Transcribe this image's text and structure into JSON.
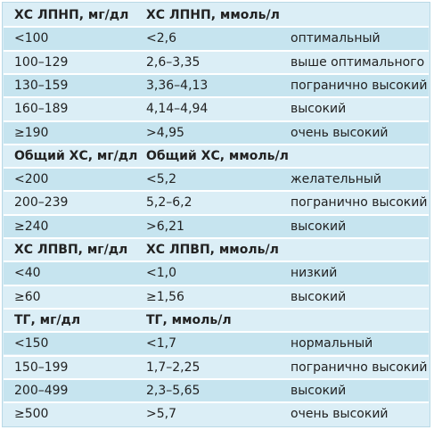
{
  "sections": [
    {
      "header": [
        "ХС ЛПНП, мг/дл",
        "ХС ЛПНП, ммоль/л"
      ],
      "rows": [
        [
          "<100",
          "<2,6",
          "оптимальный"
        ],
        [
          "100–129",
          "2,6–3,35",
          "выше оптимального"
        ],
        [
          "130–159",
          "3,36–4,13",
          "погранично высокий"
        ],
        [
          "160–189",
          "4,14–4,94",
          "высокий"
        ],
        [
          "≥190",
          ">4,95",
          "очень высокий"
        ]
      ]
    },
    {
      "header": [
        "Общий ХС, мг/дл",
        "Общий ХС,  ммоль/л"
      ],
      "rows": [
        [
          "<200",
          "<5,2",
          "желательный"
        ],
        [
          "200–239",
          "5,2–6,2",
          "погранично высокий"
        ],
        [
          "≥240",
          ">6,21",
          "высокий"
        ]
      ]
    },
    {
      "header": [
        "ХС ЛПВП, мг/дл",
        "ХС ЛПВП, ммоль/л"
      ],
      "rows": [
        [
          "<40",
          "<1,0",
          "низкий"
        ],
        [
          "≥60",
          "≥1,56",
          "высокий"
        ]
      ]
    },
    {
      "header": [
        "ТГ, мг/дл",
        "ТГ, ммоль/л"
      ],
      "rows": [
        [
          "<150",
          "<1,7",
          "нормальный"
        ],
        [
          "150–199",
          "1,7–2,25",
          "погранично высокий"
        ],
        [
          "200–499",
          "2,3–5,65",
          "высокий"
        ],
        [
          "≥500",
          ">5,7",
          "очень высокий"
        ]
      ]
    }
  ],
  "colors": {
    "background": "#dbeef6",
    "stripe": "#c6e4ef",
    "separator": "#ffffff",
    "text": "#222222"
  }
}
